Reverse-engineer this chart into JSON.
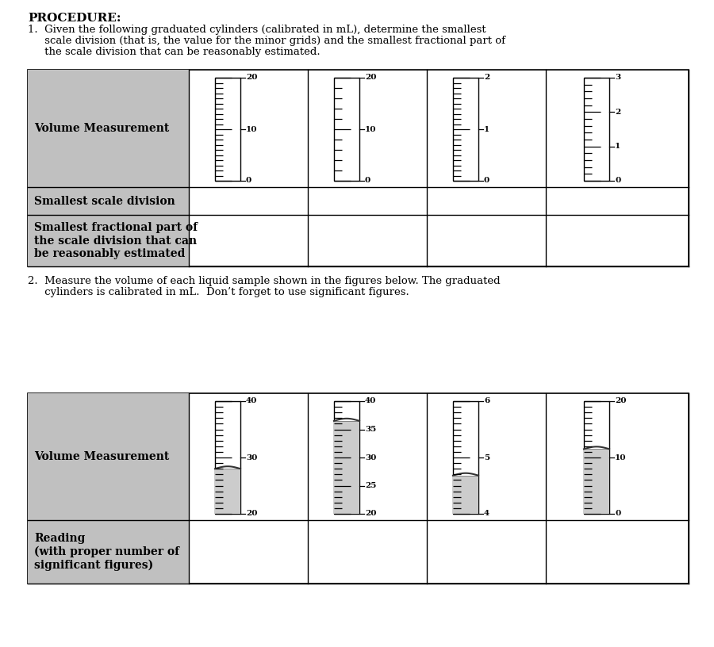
{
  "title": "PROCEDURE:",
  "bg_color": "#ffffff",
  "gray_cell_color": "#c0c0c0",
  "section1_text1": "1.  Given the following graduated cylinders (calibrated in mL), determine the smallest",
  "section1_text2": "     scale division (that is, the value for the minor grids) and the smallest fractional part of",
  "section1_text3": "     the scale division that can be reasonably estimated.",
  "section2_text1": "2.  Measure the volume of each liquid sample shown in the figures below. The graduated",
  "section2_text2": "     cylinders is calibrated in mL.  Don’t forget to use significant figures.",
  "table1_row_labels": [
    "Volume Measurement",
    "Smallest scale division",
    "Smallest fractional part of\nthe scale division that can\nbe reasonably estimated"
  ],
  "table1_cylinders": [
    {
      "major_ticks": [
        0,
        10,
        20
      ],
      "minor_per_major": 10,
      "scale_min": 0,
      "scale_max": 20,
      "liquid_level": null
    },
    {
      "major_ticks": [
        0,
        10,
        20
      ],
      "minor_per_major": 5,
      "scale_min": 0,
      "scale_max": 20,
      "liquid_level": null
    },
    {
      "major_ticks": [
        0,
        1,
        2
      ],
      "minor_per_major": 10,
      "scale_min": 0,
      "scale_max": 2,
      "liquid_level": null
    },
    {
      "major_ticks": [
        0,
        1,
        2,
        3
      ],
      "minor_per_major": 5,
      "scale_min": 0,
      "scale_max": 3,
      "liquid_level": null
    }
  ],
  "table2_row_labels": [
    "Volume Measurement",
    "Reading\n(with proper number of\nsignificant figures)"
  ],
  "table2_cylinders": [
    {
      "major_ticks": [
        20,
        30,
        40
      ],
      "minor_per_major": 10,
      "scale_min": 20,
      "scale_max": 40,
      "liquid_level": 28.0
    },
    {
      "major_ticks": [
        20,
        25,
        30,
        35,
        40
      ],
      "minor_per_major": 5,
      "scale_min": 20,
      "scale_max": 40,
      "liquid_level": 36.5
    },
    {
      "major_ticks": [
        4,
        5,
        6
      ],
      "minor_per_major": 10,
      "scale_min": 4,
      "scale_max": 6,
      "liquid_level": 4.68
    },
    {
      "major_ticks": [
        0,
        10,
        20
      ],
      "minor_per_major": 10,
      "scale_min": 0,
      "scale_max": 20,
      "liquid_level": 11.5
    }
  ]
}
